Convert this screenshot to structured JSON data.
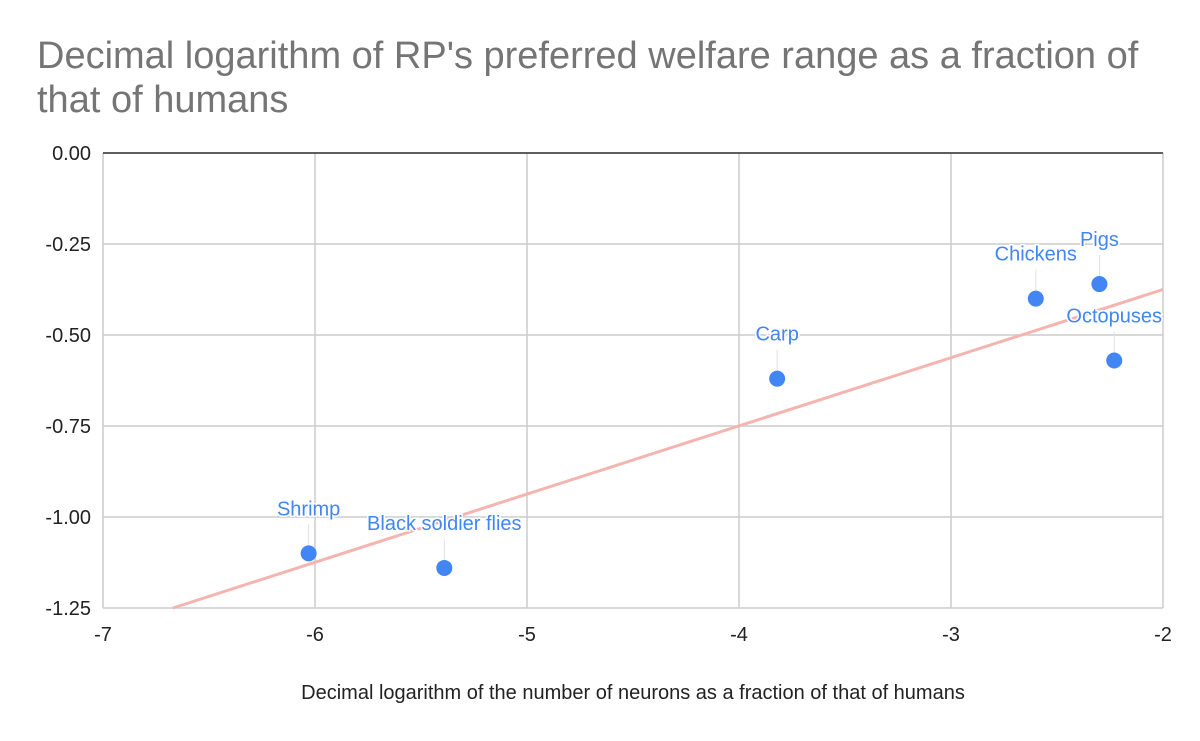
{
  "chart_data": {
    "type": "scatter",
    "title": "Decimal logarithm of RP's preferred welfare range as a fraction of that of humans",
    "xlabel": "Decimal logarithm of the number of neurons as a fraction of that of humans",
    "ylabel": "",
    "xlim": [
      -7,
      -2
    ],
    "ylim": [
      -1.25,
      0
    ],
    "xticks": [
      -7,
      -6,
      -5,
      -4,
      -3,
      -2
    ],
    "yticks": [
      0,
      -0.25,
      -0.5,
      -0.75,
      -1,
      -1.25
    ],
    "ytick_labels": [
      "0.00",
      "-0.25",
      "-0.50",
      "-0.75",
      "-1.00",
      "-1.25"
    ],
    "xtick_labels": [
      "-7",
      "-6",
      "-5",
      "-4",
      "-3",
      "-2"
    ],
    "grid": true,
    "points": [
      {
        "label": "Shrimp",
        "x": -6.03,
        "y": -1.1
      },
      {
        "label": "Black soldier flies",
        "x": -5.39,
        "y": -1.14
      },
      {
        "label": "Carp",
        "x": -3.82,
        "y": -0.62
      },
      {
        "label": "Chickens",
        "x": -2.6,
        "y": -0.4
      },
      {
        "label": "Pigs",
        "x": -2.3,
        "y": -0.36
      },
      {
        "label": "Octopuses",
        "x": -2.23,
        "y": -0.57
      }
    ],
    "trendline": {
      "x": [
        -6.67,
        -2
      ],
      "y": [
        -1.25,
        -0.375
      ]
    },
    "colors": {
      "points": "#4285f4",
      "labels": "#4285f4",
      "trendline": "#f4b5b0",
      "grid": "#cccccc",
      "title": "#757575"
    }
  }
}
